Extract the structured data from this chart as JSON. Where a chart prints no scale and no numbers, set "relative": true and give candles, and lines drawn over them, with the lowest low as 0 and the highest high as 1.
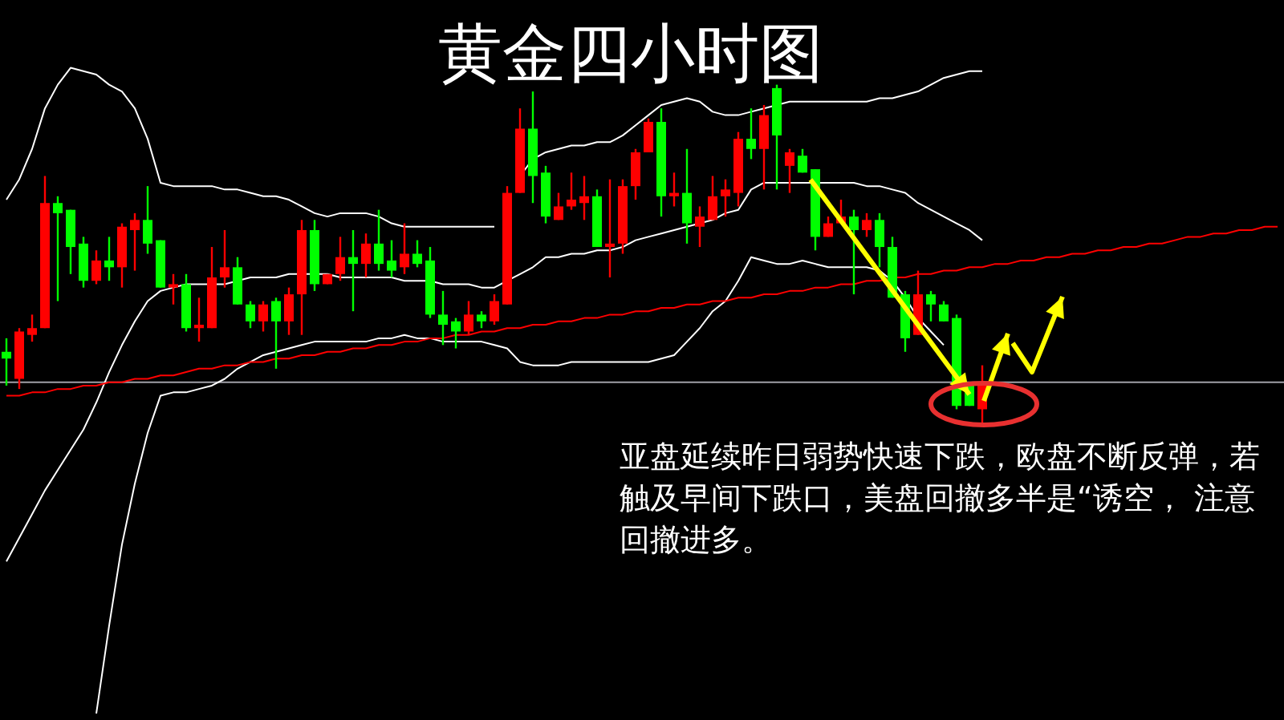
{
  "chart_data": {
    "type": "candlestick",
    "title": "黄金四小时图",
    "annotations": [
      "亚盘延续昨日弱势快速下跌，欧盘不断反弹，若触及早间下跌口，美盘回撤多半是“诱空， 注意回撤进多。"
    ],
    "relative": true,
    "categories": [
      null,
      null,
      null,
      null,
      null,
      null,
      null,
      null,
      null,
      null,
      null,
      null,
      null,
      null,
      null,
      null,
      null,
      null,
      null,
      null,
      null,
      null,
      null,
      null,
      null,
      null,
      null,
      null,
      null,
      null,
      null,
      null,
      null,
      null,
      null,
      null,
      null,
      null,
      null,
      null,
      null,
      null,
      null,
      null,
      null,
      null,
      null,
      null,
      null,
      null,
      null,
      null,
      null,
      null,
      null,
      null,
      null,
      null,
      null,
      null,
      null,
      null,
      null,
      null,
      null,
      null,
      null,
      null,
      null,
      null,
      null,
      null,
      null,
      null,
      null,
      null,
      null,
      null,
      null,
      null,
      null,
      null,
      null,
      null,
      null,
      null,
      null,
      null,
      null,
      null,
      null,
      null,
      null,
      null,
      null,
      null,
      null,
      null,
      null,
      null
    ],
    "ohlc": [
      [
        0.21,
        0.25,
        0.11,
        0.19
      ],
      [
        0.13,
        0.28,
        0.1,
        0.27
      ],
      [
        0.26,
        0.32,
        0.24,
        0.28
      ],
      [
        0.28,
        0.73,
        0.28,
        0.65
      ],
      [
        0.65,
        0.67,
        0.36,
        0.62
      ],
      [
        0.63,
        0.63,
        0.44,
        0.52
      ],
      [
        0.53,
        0.55,
        0.4,
        0.42
      ],
      [
        0.42,
        0.51,
        0.41,
        0.48
      ],
      [
        0.48,
        0.55,
        0.42,
        0.46
      ],
      [
        0.46,
        0.59,
        0.4,
        0.58
      ],
      [
        0.57,
        0.62,
        0.45,
        0.6
      ],
      [
        0.6,
        0.7,
        0.5,
        0.53
      ],
      [
        0.54,
        0.54,
        0.4,
        0.4
      ],
      [
        0.4,
        0.44,
        0.35,
        0.41
      ],
      [
        0.41,
        0.44,
        0.27,
        0.28
      ],
      [
        0.28,
        0.37,
        0.24,
        0.29
      ],
      [
        0.28,
        0.52,
        0.28,
        0.43
      ],
      [
        0.43,
        0.57,
        0.4,
        0.46
      ],
      [
        0.46,
        0.49,
        0.35,
        0.35
      ],
      [
        0.35,
        0.36,
        0.28,
        0.3
      ],
      [
        0.3,
        0.36,
        0.27,
        0.35
      ],
      [
        0.36,
        0.37,
        0.16,
        0.3
      ],
      [
        0.3,
        0.4,
        0.26,
        0.38
      ],
      [
        0.38,
        0.6,
        0.26,
        0.57
      ],
      [
        0.57,
        0.6,
        0.39,
        0.41
      ],
      [
        0.41,
        0.44,
        0.41,
        0.44
      ],
      [
        0.44,
        0.55,
        0.42,
        0.49
      ],
      [
        0.49,
        0.57,
        0.33,
        0.47
      ],
      [
        0.47,
        0.56,
        0.43,
        0.53
      ],
      [
        0.53,
        0.63,
        0.45,
        0.47
      ],
      [
        0.48,
        0.54,
        0.43,
        0.45
      ],
      [
        0.46,
        0.59,
        0.44,
        0.5
      ],
      [
        0.5,
        0.54,
        0.46,
        0.47
      ],
      [
        0.48,
        0.52,
        0.31,
        0.32
      ],
      [
        0.32,
        0.39,
        0.23,
        0.29
      ],
      [
        0.3,
        0.31,
        0.22,
        0.27
      ],
      [
        0.27,
        0.36,
        0.26,
        0.32
      ],
      [
        0.32,
        0.33,
        0.28,
        0.3
      ],
      [
        0.3,
        0.38,
        0.29,
        0.36
      ],
      [
        0.35,
        0.7,
        0.35,
        0.68
      ],
      [
        0.68,
        0.93,
        0.68,
        0.87
      ],
      [
        0.87,
        0.98,
        0.65,
        0.73
      ],
      [
        0.74,
        0.76,
        0.59,
        0.61
      ],
      [
        0.6,
        0.68,
        0.6,
        0.64
      ],
      [
        0.64,
        0.74,
        0.63,
        0.66
      ],
      [
        0.65,
        0.73,
        0.6,
        0.67
      ],
      [
        0.67,
        0.69,
        0.52,
        0.52
      ],
      [
        0.52,
        0.72,
        0.43,
        0.53
      ],
      [
        0.53,
        0.72,
        0.5,
        0.7
      ],
      [
        0.7,
        0.81,
        0.66,
        0.8
      ],
      [
        0.8,
        0.9,
        0.8,
        0.89
      ],
      [
        0.89,
        0.93,
        0.61,
        0.67
      ],
      [
        0.67,
        0.74,
        0.64,
        0.68
      ],
      [
        0.68,
        0.81,
        0.53,
        0.59
      ],
      [
        0.58,
        0.64,
        0.52,
        0.61
      ],
      [
        0.6,
        0.73,
        0.6,
        0.67
      ],
      [
        0.67,
        0.72,
        0.61,
        0.69
      ],
      [
        0.68,
        0.86,
        0.64,
        0.84
      ],
      [
        0.84,
        0.93,
        0.78,
        0.81
      ],
      [
        0.81,
        0.94,
        0.69,
        0.91
      ],
      [
        0.99,
        1.0,
        0.69,
        0.85
      ],
      [
        0.76,
        0.81,
        0.68,
        0.8
      ],
      [
        0.79,
        0.81,
        0.74,
        0.74
      ],
      [
        0.75,
        0.75,
        0.51,
        0.55
      ],
      [
        0.55,
        0.61,
        0.55,
        0.59
      ],
      [
        0.59,
        0.66,
        0.59,
        0.61
      ],
      [
        0.61,
        0.63,
        0.38,
        0.57
      ],
      [
        0.57,
        0.62,
        0.55,
        0.6
      ],
      [
        0.6,
        0.62,
        0.46,
        0.52
      ],
      [
        0.52,
        0.55,
        0.37,
        0.37
      ],
      [
        0.38,
        0.39,
        0.21,
        0.25
      ],
      [
        0.26,
        0.45,
        0.26,
        0.38
      ],
      [
        0.38,
        0.39,
        0.3,
        0.35
      ],
      [
        0.35,
        0.36,
        0.3,
        0.3
      ],
      [
        0.31,
        0.32,
        0.04,
        0.05
      ],
      [
        0.12,
        0.12,
        0.05,
        0.05
      ],
      [
        0.04,
        0.17,
        0.0,
        0.12
      ],
      null,
      null,
      null,
      null,
      null,
      null,
      null,
      null,
      null,
      null,
      null,
      null,
      null,
      null,
      null,
      null,
      null,
      null,
      null,
      null,
      null,
      null,
      null
    ],
    "colors": [
      "#00ff00",
      "#ff0000",
      "#ff0000",
      "#ff0000",
      "#00ff00",
      "#00ff00",
      "#00ff00",
      "#ff0000",
      "#00ff00",
      "#ff0000",
      "#ff0000",
      "#00ff00",
      "#00ff00",
      "#ff0000",
      "#00ff00",
      "#ff0000",
      "#ff0000",
      "#ff0000",
      "#00ff00",
      "#00ff00",
      "#ff0000",
      "#00ff00",
      "#ff0000",
      "#ff0000",
      "#00ff00",
      "#ff0000",
      "#ff0000",
      "#00ff00",
      "#ff0000",
      "#00ff00",
      "#00ff00",
      "#ff0000",
      "#00ff00",
      "#00ff00",
      "#00ff00",
      "#00ff00",
      "#ff0000",
      "#00ff00",
      "#ff0000",
      "#ff0000",
      "#ff0000",
      "#00ff00",
      "#00ff00",
      "#ff0000",
      "#ff0000",
      "#ff0000",
      "#00ff00",
      "#ff0000",
      "#ff0000",
      "#ff0000",
      "#ff0000",
      "#00ff00",
      "#ff0000",
      "#00ff00",
      "#ff0000",
      "#ff0000",
      "#ff0000",
      "#ff0000",
      "#00ff00",
      "#ff0000",
      "#00ff00",
      "#ff0000",
      "#00ff00",
      "#00ff00",
      "#ff0000",
      "#ff0000",
      "#00ff00",
      "#ff0000",
      "#00ff00",
      "#00ff00",
      "#00ff00",
      "#ff0000",
      "#00ff00",
      "#00ff00",
      "#00ff00",
      "#00ff00",
      "#ff0000",
      null,
      null,
      null,
      null,
      null,
      null,
      null,
      null,
      null,
      null,
      null,
      null,
      null,
      null,
      null,
      null,
      null,
      null,
      null,
      null,
      null,
      null,
      null
    ],
    "series": [
      {
        "type": "line",
        "color": "#ffffff",
        "values": [
          0.66,
          0.72,
          0.81,
          0.93,
          1.0,
          1.05,
          1.04,
          1.03,
          1.0,
          0.98,
          0.93,
          0.84,
          0.71,
          0.7,
          0.7,
          0.7,
          0.7,
          0.69,
          0.69,
          0.68,
          0.67,
          0.67,
          0.66,
          0.64,
          0.62,
          0.61,
          0.62,
          0.62,
          0.62,
          0.61,
          0.59,
          0.58,
          0.58,
          0.58,
          0.58,
          0.58,
          0.58,
          0.58,
          0.58,
          null,
          0.73,
          0.78,
          0.8,
          0.81,
          0.82,
          0.82,
          0.83,
          0.83,
          0.85,
          0.88,
          0.91,
          0.94,
          0.95,
          0.96,
          0.95,
          0.92,
          0.91,
          0.91,
          0.92,
          0.93,
          0.94,
          0.95,
          0.95,
          0.95,
          0.95,
          0.95,
          0.95,
          0.95,
          0.96,
          0.96,
          0.97,
          0.98,
          1.0,
          1.02,
          1.03,
          1.04,
          1.04,
          null,
          null,
          null,
          null,
          null,
          null,
          null,
          null,
          null,
          null,
          null,
          null,
          null,
          null,
          null,
          null,
          null,
          null,
          null,
          null,
          null,
          null,
          null
        ]
      },
      {
        "type": "line",
        "color": "#ffffff",
        "values": [
          -0.41,
          -0.34,
          -0.27,
          -0.2,
          -0.14,
          -0.08,
          -0.02,
          0.06,
          0.15,
          0.23,
          0.3,
          0.36,
          0.39,
          0.4,
          0.41,
          0.41,
          0.41,
          0.41,
          0.42,
          0.43,
          0.43,
          0.43,
          0.44,
          0.44,
          0.44,
          0.44,
          0.43,
          0.43,
          0.43,
          0.43,
          0.43,
          0.42,
          0.42,
          0.42,
          0.41,
          0.41,
          0.41,
          0.4,
          0.4,
          0.42,
          0.44,
          0.46,
          0.49,
          0.49,
          0.5,
          0.5,
          0.51,
          0.51,
          0.52,
          0.54,
          0.55,
          0.56,
          0.57,
          0.58,
          0.59,
          0.6,
          0.62,
          0.63,
          0.69,
          0.71,
          0.71,
          0.71,
          0.71,
          0.71,
          0.71,
          0.71,
          0.71,
          0.7,
          0.7,
          0.69,
          0.68,
          0.65,
          0.63,
          0.61,
          0.59,
          0.57,
          0.54,
          null,
          null,
          null,
          null,
          null,
          null,
          null,
          null,
          null,
          null,
          null,
          null,
          null,
          null,
          null,
          null,
          null,
          null,
          null,
          null,
          null,
          null,
          null
        ]
      },
      {
        "type": "line",
        "color": "#ffffff",
        "values": [
          null,
          null,
          null,
          null,
          null,
          null,
          null,
          -0.86,
          -0.6,
          -0.36,
          -0.18,
          -0.03,
          0.08,
          0.09,
          0.09,
          0.1,
          0.11,
          0.13,
          0.16,
          0.18,
          0.2,
          0.21,
          0.22,
          0.23,
          0.24,
          0.24,
          0.24,
          0.24,
          0.24,
          0.25,
          0.25,
          0.26,
          0.25,
          0.25,
          0.24,
          0.24,
          0.24,
          0.24,
          0.23,
          0.22,
          0.18,
          0.17,
          0.17,
          0.17,
          0.18,
          0.18,
          0.18,
          0.18,
          0.18,
          0.18,
          0.18,
          0.19,
          0.2,
          0.24,
          0.28,
          0.33,
          0.36,
          0.42,
          0.49,
          0.48,
          0.47,
          0.47,
          0.48,
          0.47,
          0.46,
          0.46,
          0.46,
          0.46,
          0.45,
          0.42,
          0.37,
          0.31,
          0.27,
          0.23,
          null,
          null,
          null,
          null,
          null,
          null,
          null,
          null,
          null,
          null,
          null,
          null,
          null,
          null,
          null,
          null,
          null,
          null,
          null,
          null,
          null,
          null,
          null,
          null,
          null,
          null
        ]
      },
      {
        "type": "line",
        "color": "#ff0000",
        "values": [
          0.08,
          0.08,
          0.09,
          0.09,
          0.1,
          0.1,
          0.11,
          0.11,
          0.12,
          0.12,
          0.13,
          0.13,
          0.14,
          0.14,
          0.15,
          0.16,
          0.16,
          0.17,
          0.17,
          0.18,
          0.18,
          0.19,
          0.19,
          0.2,
          0.2,
          0.21,
          0.21,
          0.22,
          0.22,
          0.23,
          0.23,
          0.24,
          0.24,
          0.25,
          0.25,
          0.26,
          0.26,
          0.27,
          0.27,
          0.28,
          0.28,
          0.29,
          0.29,
          0.3,
          0.3,
          0.31,
          0.31,
          0.32,
          0.32,
          0.33,
          0.33,
          0.34,
          0.34,
          0.35,
          0.35,
          0.36,
          0.36,
          0.37,
          0.37,
          0.38,
          0.38,
          0.39,
          0.39,
          0.4,
          0.4,
          0.41,
          0.41,
          0.42,
          0.42,
          0.43,
          0.43,
          0.44,
          0.44,
          0.45,
          0.45,
          0.46,
          0.46,
          0.47,
          0.47,
          0.48,
          0.48,
          0.49,
          0.49,
          0.5,
          0.5,
          0.51,
          0.51,
          0.52,
          0.52,
          0.53,
          0.53,
          0.54,
          0.55,
          0.55,
          0.56,
          0.56,
          0.57,
          0.57,
          0.58,
          0.58
        ]
      }
    ],
    "ref_lines": [
      {
        "axis": "y",
        "value": 0.12,
        "color": "#a0a0a8"
      }
    ]
  }
}
